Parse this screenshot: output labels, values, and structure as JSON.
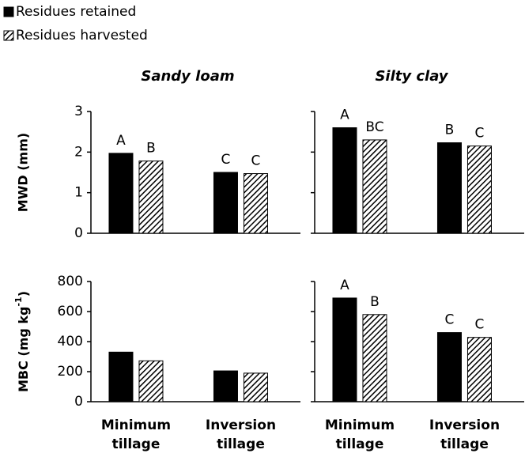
{
  "chart_data": [
    {
      "type": "bar",
      "title": "Sandy loam",
      "ylabel": "MWD (mm)",
      "categories": [
        null,
        null
      ],
      "series": [
        {
          "name": "Residues retained",
          "color": "#000000",
          "pattern": "solid",
          "values": [
            1.97,
            1.5
          ],
          "annotations": [
            "A",
            "C"
          ]
        },
        {
          "name": "Residues harvested",
          "color": "#000000",
          "pattern": "hatch",
          "values": [
            1.78,
            1.47
          ],
          "annotations": [
            "B",
            "C"
          ]
        }
      ],
      "ylim": [
        0,
        3
      ],
      "yticks": [
        0,
        1,
        2,
        3
      ],
      "show_tick_labels": true,
      "annotation_color": "#222222"
    },
    {
      "type": "bar",
      "title": "Silty clay",
      "categories": [
        null,
        null
      ],
      "series": [
        {
          "name": "Residues retained",
          "color": "#000000",
          "pattern": "solid",
          "values": [
            2.6,
            2.23
          ],
          "annotations": [
            "A",
            "B"
          ]
        },
        {
          "name": "Residues harvested",
          "color": "#000000",
          "pattern": "hatch",
          "values": [
            2.3,
            2.15
          ],
          "annotations": [
            "BC",
            "C"
          ]
        }
      ],
      "ylim": [
        0,
        3
      ],
      "yticks": [
        0,
        1,
        2,
        3
      ],
      "show_tick_labels": false,
      "annotation_color": "#555555"
    },
    {
      "type": "bar",
      "ylabel_parts": [
        "MBC (mg kg",
        "-1",
        ")"
      ],
      "categories": [
        "Minimum tillage",
        "Inversion tillage"
      ],
      "series": [
        {
          "name": "Residues retained",
          "color": "#000000",
          "pattern": "solid",
          "values": [
            330,
            205
          ]
        },
        {
          "name": "Residues harvested",
          "color": "#000000",
          "pattern": "hatch",
          "values": [
            272,
            190
          ]
        }
      ],
      "ylim": [
        0,
        800
      ],
      "yticks": [
        0,
        200,
        400,
        600,
        800
      ],
      "show_tick_labels": true
    },
    {
      "type": "bar",
      "categories": [
        "Minimum tillage",
        "Inversion tillage"
      ],
      "series": [
        {
          "name": "Residues retained",
          "color": "#000000",
          "pattern": "solid",
          "values": [
            690,
            460
          ],
          "annotations": [
            "A",
            "C"
          ]
        },
        {
          "name": "Residues harvested",
          "color": "#000000",
          "pattern": "hatch",
          "values": [
            580,
            428
          ],
          "annotations": [
            "B",
            "C"
          ]
        }
      ],
      "ylim": [
        0,
        800
      ],
      "yticks": [
        0,
        200,
        400,
        600,
        800
      ],
      "show_tick_labels": false,
      "annotation_color": "#555555"
    }
  ]
}
